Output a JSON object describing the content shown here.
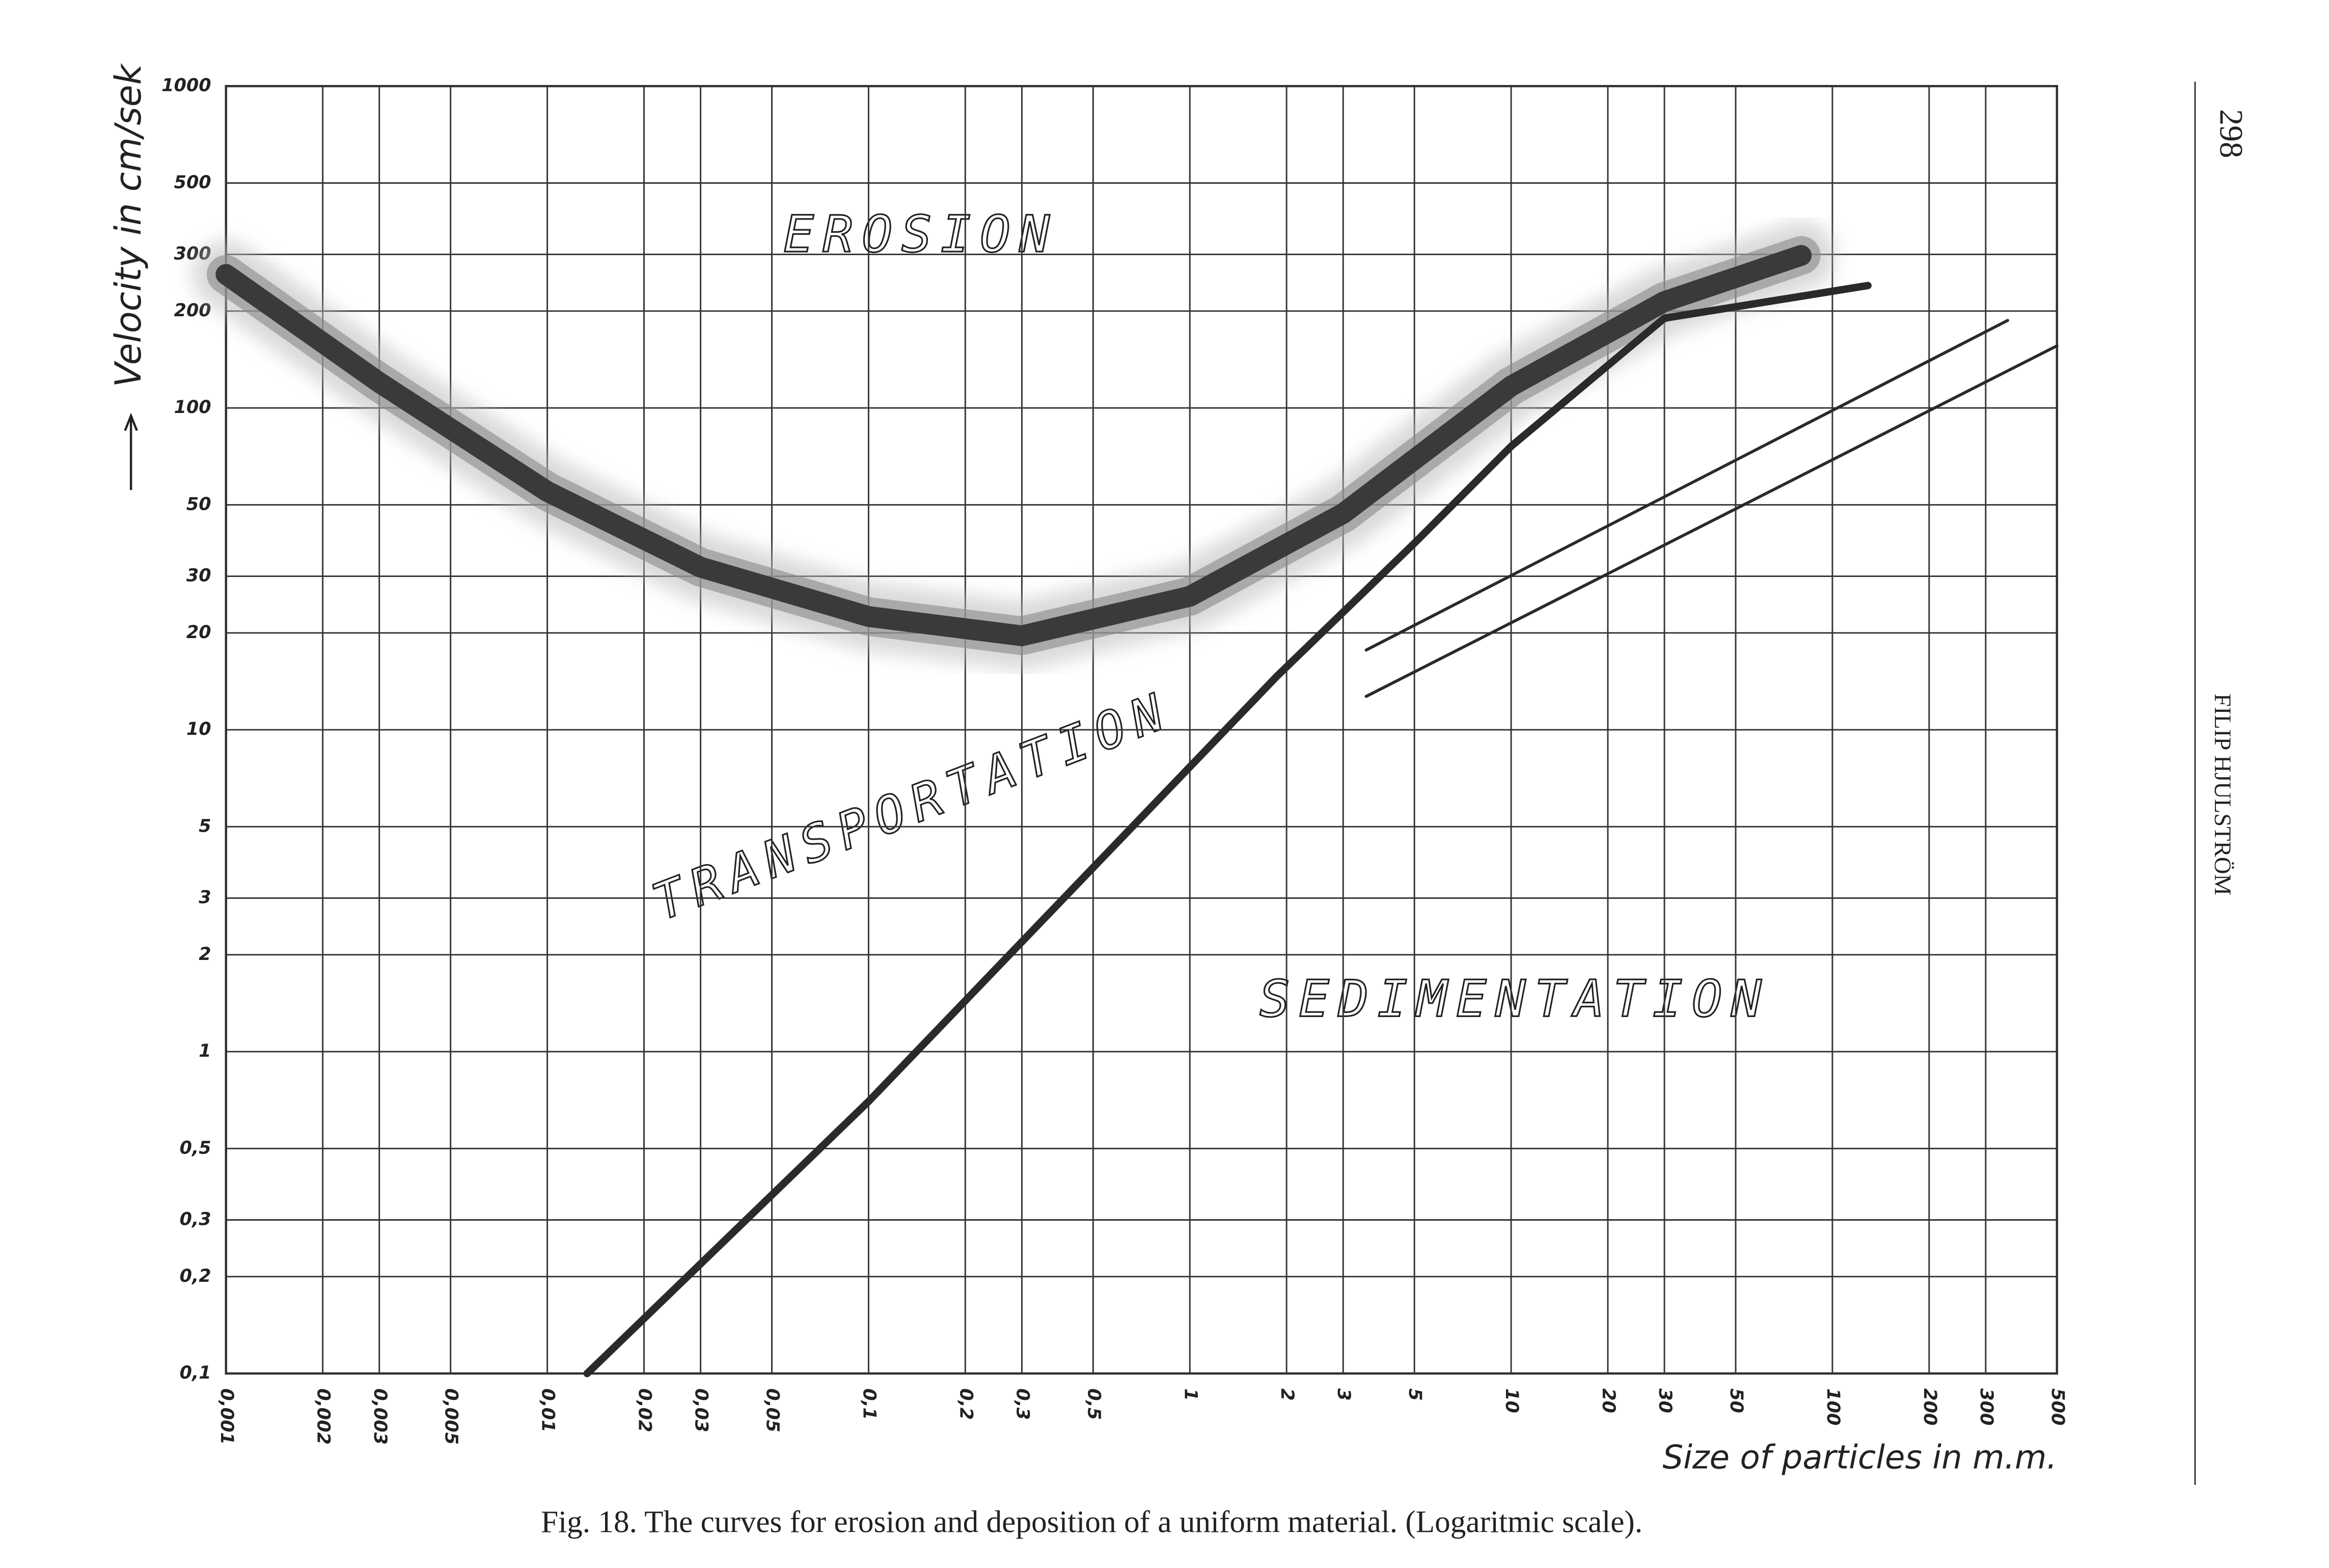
{
  "page": {
    "number": "298",
    "running_head": "FILIP HJULSTRÖM"
  },
  "chart_data": {
    "type": "line",
    "caption": "Fig. 18.  The curves for erosion and deposition of a uniform material. (Logaritmic scale).",
    "xlabel": "Size of particles in m.m.",
    "ylabel": "Velocity in cm/sek",
    "annotations": [
      "EROSION",
      "TRANSPORTATION",
      "SEDIMENTATION"
    ],
    "xscale": "log",
    "yscale": "log",
    "grid": true,
    "xlim": [
      0.001,
      500
    ],
    "ylim": [
      0.1,
      1000
    ],
    "xticks": [
      {
        "value": 0.001,
        "label": "0,001"
      },
      {
        "value": 0.002,
        "label": "0,002"
      },
      {
        "value": 0.003,
        "label": "0,003"
      },
      {
        "value": 0.005,
        "label": "0,005"
      },
      {
        "value": 0.01,
        "label": "0,01"
      },
      {
        "value": 0.02,
        "label": "0,02"
      },
      {
        "value": 0.03,
        "label": "0,03"
      },
      {
        "value": 0.05,
        "label": "0,05"
      },
      {
        "value": 0.1,
        "label": "0,1"
      },
      {
        "value": 0.2,
        "label": "0,2"
      },
      {
        "value": 0.3,
        "label": "0,3"
      },
      {
        "value": 0.5,
        "label": "0,5"
      },
      1,
      2,
      3,
      5,
      10,
      20,
      30,
      50,
      100,
      200,
      300,
      500
    ],
    "yticks": [
      {
        "value": 0.1,
        "label": "0,1"
      },
      {
        "value": 0.2,
        "label": "0,2"
      },
      {
        "value": 0.3,
        "label": "0,3"
      },
      {
        "value": 0.5,
        "label": "0,5"
      },
      1,
      2,
      3,
      5,
      10,
      20,
      30,
      50,
      100,
      200,
      300,
      500,
      1000
    ],
    "series": [
      {
        "color": "#3a3a3a",
        "band": true,
        "x": [
          0.001,
          0.003,
          0.01,
          0.03,
          0.1,
          0.3,
          1,
          3,
          10,
          30,
          80
        ],
        "values": [
          260,
          120,
          55,
          32,
          22.5,
          19.6,
          26,
          47,
          117,
          214,
          298
        ]
      },
      {
        "color": "#2a2a2a",
        "x": [
          0.0133,
          0.1,
          1.87,
          5,
          10,
          30,
          129
        ],
        "values": [
          0.1,
          0.7,
          14.7,
          38,
          76,
          190,
          240
        ]
      },
      {
        "color": "#2a2a2a",
        "x": [
          3.54,
          351
        ],
        "values": [
          17.7,
          187
        ]
      },
      {
        "color": "#2a2a2a",
        "x": [
          3.54,
          500
        ],
        "values": [
          12.7,
          156
        ]
      }
    ]
  }
}
